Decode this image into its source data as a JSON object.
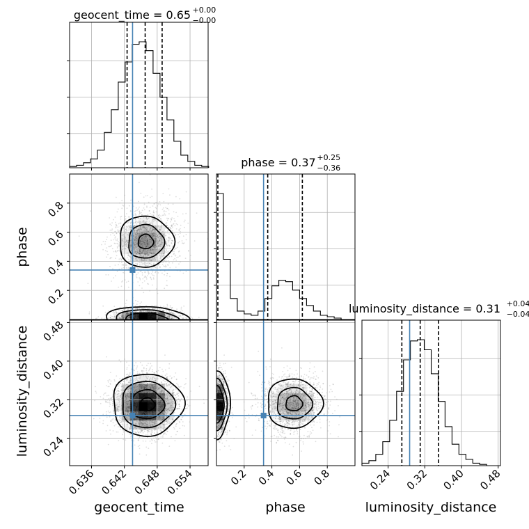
{
  "chart_data": {
    "type": "corner",
    "parameters": [
      "geocent_time",
      "phase",
      "luminosity_distance"
    ],
    "injection": {
      "geocent_time": 0.6435,
      "phase": 0.34,
      "luminosity_distance": 0.287
    },
    "titles": [
      {
        "name": "geocent_time",
        "median": "0.65",
        "plus": "+0.00",
        "minus": "−0.00"
      },
      {
        "name": "phase",
        "median": "0.37",
        "plus": "+0.25",
        "minus": "−0.36"
      },
      {
        "name": "luminosity_distance",
        "median": "0.31",
        "plus": "+0.04",
        "minus": "−0.04"
      }
    ],
    "axes": {
      "geocent_time": {
        "range": [
          0.632,
          0.6573
        ],
        "ticks": [
          0.636,
          0.642,
          0.648,
          0.654
        ],
        "tick_labels": [
          "0.636",
          "0.642",
          "0.648",
          "0.654"
        ]
      },
      "phase": {
        "range": [
          0.0,
          1.0
        ],
        "ticks": [
          0.2,
          0.4,
          0.6,
          0.8
        ],
        "tick_labels": [
          "0.2",
          "0.4",
          "0.6",
          "0.8"
        ]
      },
      "luminosity_distance": {
        "range": [
          0.183,
          0.485
        ],
        "ticks": [
          0.24,
          0.32,
          0.4,
          0.48
        ],
        "tick_labels": [
          "0.24",
          "0.32",
          "0.40",
          "0.48"
        ]
      }
    },
    "histograms": [
      {
        "param": "geocent_time",
        "bin_edges_start": 0.632,
        "bin_width": 0.00127,
        "counts": [
          0.01,
          0.02,
          0.04,
          0.07,
          0.14,
          0.28,
          0.46,
          0.68,
          0.84,
          0.98,
          1.0,
          0.93,
          0.75,
          0.56,
          0.38,
          0.21,
          0.1,
          0.05,
          0.02,
          0.01
        ],
        "quantiles": [
          0.6425,
          0.6458,
          0.6489
        ]
      },
      {
        "param": "phase",
        "bin_edges_start": 0.0,
        "bin_width": 0.05,
        "counts": [
          0.9,
          0.43,
          0.15,
          0.06,
          0.04,
          0.03,
          0.06,
          0.15,
          0.24,
          0.28,
          0.27,
          0.21,
          0.15,
          0.1,
          0.06,
          0.03,
          0.02,
          0.01,
          0.0,
          0.0
        ],
        "quantiles": [
          0.01,
          0.37,
          0.62
        ]
      },
      {
        "param": "luminosity_distance",
        "bin_edges_start": 0.183,
        "bin_width": 0.0151,
        "counts": [
          0.02,
          0.04,
          0.09,
          0.19,
          0.36,
          0.59,
          0.84,
          0.99,
          1.0,
          0.92,
          0.73,
          0.51,
          0.31,
          0.17,
          0.09,
          0.05,
          0.02,
          0.01,
          0.0,
          0.0
        ],
        "quantiles": [
          0.27,
          0.31,
          0.35
        ]
      }
    ]
  }
}
